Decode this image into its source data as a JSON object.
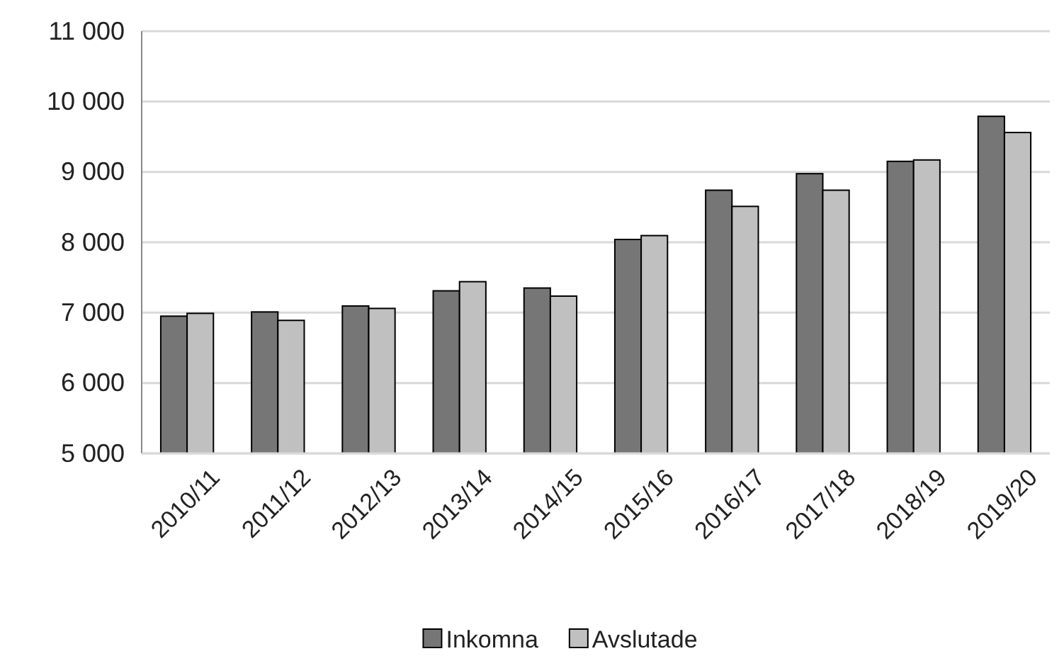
{
  "chart_data": {
    "type": "bar",
    "categories": [
      "2010/11",
      "2011/12",
      "2012/13",
      "2013/14",
      "2014/15",
      "2015/16",
      "2016/17",
      "2017/18",
      "2018/19",
      "2019/20"
    ],
    "series": [
      {
        "name": "Inkomna",
        "color": "#767676",
        "values": [
          6950,
          7010,
          7095,
          7310,
          7350,
          8040,
          8740,
          8975,
          9150,
          9790
        ]
      },
      {
        "name": "Avslutade",
        "color": "#c0c0c0",
        "values": [
          6990,
          6890,
          7060,
          7440,
          7235,
          8095,
          8510,
          8740,
          9170,
          9560
        ]
      }
    ],
    "ylim": [
      5000,
      11000
    ],
    "yticks": [
      {
        "value": 5000,
        "label": "5 000"
      },
      {
        "value": 6000,
        "label": "6 000"
      },
      {
        "value": 7000,
        "label": "7 000"
      },
      {
        "value": 8000,
        "label": "8 000"
      },
      {
        "value": 9000,
        "label": "9 000"
      },
      {
        "value": 10000,
        "label": "10 000"
      },
      {
        "value": 11000,
        "label": "11 000"
      }
    ],
    "grid": "y",
    "legend": "bottom"
  }
}
